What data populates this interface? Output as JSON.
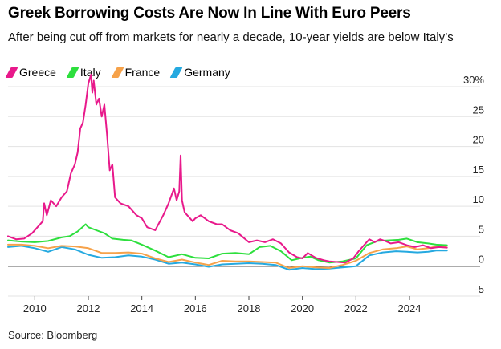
{
  "title": "Greek Borrowing Costs Are Now In Line With Euro Peers",
  "subtitle": "After being cut off from markets for nearly a decade, 10-year yields are below Italy’s",
  "source": "Source: Bloomberg",
  "chart_data": {
    "type": "line",
    "title": "Greek Borrowing Costs Are Now In Line With Euro Peers",
    "subtitle": "After being cut off from markets for nearly a decade, 10-year yields are below Italy’s",
    "xlabel": "",
    "ylabel": "",
    "y_unit": "%",
    "xlim": [
      2009.0,
      2025.8
    ],
    "ylim": [
      -5,
      30
    ],
    "x_ticks": [
      2010,
      2012,
      2014,
      2016,
      2018,
      2020,
      2022,
      2024
    ],
    "y_ticks": [
      -5,
      0,
      5,
      10,
      15,
      20,
      25,
      30
    ],
    "y_tick_labels": [
      "-5",
      "0",
      "5",
      "10",
      "15",
      "20",
      "25",
      "30%"
    ],
    "grid": "horizontal",
    "legend_position": "top-left",
    "series": [
      {
        "name": "Greece",
        "color": "#e8198b",
        "x": [
          2009.0,
          2009.3,
          2009.6,
          2009.9,
          2010.1,
          2010.3,
          2010.35,
          2010.45,
          2010.6,
          2010.8,
          2011.0,
          2011.2,
          2011.35,
          2011.5,
          2011.6,
          2011.7,
          2011.8,
          2011.9,
          2012.0,
          2012.1,
          2012.15,
          2012.2,
          2012.3,
          2012.4,
          2012.5,
          2012.6,
          2012.7,
          2012.8,
          2012.9,
          2013.0,
          2013.2,
          2013.5,
          2013.8,
          2014.0,
          2014.2,
          2014.5,
          2014.8,
          2015.0,
          2015.2,
          2015.3,
          2015.4,
          2015.45,
          2015.5,
          2015.55,
          2015.6,
          2015.7,
          2015.8,
          2015.9,
          2016.0,
          2016.2,
          2016.5,
          2016.8,
          2017.0,
          2017.3,
          2017.6,
          2018.0,
          2018.3,
          2018.6,
          2018.9,
          2019.2,
          2019.5,
          2019.8,
          2020.0,
          2020.2,
          2020.5,
          2020.8,
          2021.0,
          2021.3,
          2021.6,
          2021.9,
          2022.1,
          2022.3,
          2022.5,
          2022.7,
          2022.9,
          2023.1,
          2023.3,
          2023.6,
          2023.9,
          2024.2,
          2024.5,
          2024.8,
          2025.1,
          2025.4
        ],
        "y": [
          5.0,
          4.5,
          4.6,
          5.5,
          6.5,
          7.5,
          10.5,
          8.5,
          11.0,
          10.0,
          11.5,
          12.5,
          15.5,
          17.0,
          19.0,
          23.0,
          24.0,
          27.0,
          30.5,
          32.0,
          29.0,
          31.0,
          27.0,
          28.0,
          25.0,
          27.0,
          22.0,
          16.0,
          17.0,
          11.5,
          10.5,
          10.0,
          8.5,
          8.0,
          6.5,
          6.0,
          8.5,
          10.5,
          13.0,
          11.0,
          12.5,
          18.5,
          11.0,
          10.0,
          9.0,
          8.5,
          8.0,
          7.5,
          8.0,
          8.5,
          7.5,
          7.0,
          7.0,
          6.0,
          5.5,
          4.0,
          4.3,
          4.0,
          4.5,
          3.8,
          2.3,
          1.5,
          1.3,
          2.2,
          1.4,
          1.0,
          0.8,
          0.7,
          0.6,
          1.3,
          2.5,
          3.5,
          4.5,
          4.0,
          4.5,
          4.2,
          3.8,
          4.0,
          3.5,
          3.2,
          3.5,
          3.0,
          3.2,
          3.1
        ]
      },
      {
        "name": "Italy",
        "color": "#2ddf3d",
        "x": [
          2009.0,
          2009.5,
          2010.0,
          2010.5,
          2011.0,
          2011.3,
          2011.6,
          2011.9,
          2012.0,
          2012.3,
          2012.6,
          2012.9,
          2013.3,
          2013.6,
          2014.0,
          2014.5,
          2015.0,
          2015.5,
          2016.0,
          2016.5,
          2017.0,
          2017.5,
          2018.0,
          2018.4,
          2018.8,
          2019.2,
          2019.6,
          2020.0,
          2020.3,
          2020.6,
          2021.0,
          2021.5,
          2022.0,
          2022.4,
          2022.8,
          2023.2,
          2023.6,
          2023.9,
          2024.3,
          2024.7,
          2025.0,
          2025.4
        ],
        "y": [
          4.3,
          4.1,
          4.0,
          4.2,
          4.8,
          5.0,
          5.8,
          7.0,
          6.5,
          6.0,
          5.5,
          4.6,
          4.4,
          4.3,
          3.6,
          2.6,
          1.5,
          2.0,
          1.4,
          1.3,
          2.1,
          2.2,
          2.0,
          3.2,
          3.4,
          2.5,
          1.0,
          1.4,
          1.6,
          1.0,
          0.6,
          0.8,
          1.3,
          3.5,
          4.2,
          4.3,
          4.4,
          4.6,
          4.0,
          3.8,
          3.6,
          3.5
        ]
      },
      {
        "name": "France",
        "color": "#f6a24a",
        "x": [
          2009.0,
          2009.5,
          2010.0,
          2010.5,
          2011.0,
          2011.5,
          2012.0,
          2012.5,
          2013.0,
          2013.5,
          2014.0,
          2014.5,
          2015.0,
          2015.5,
          2016.0,
          2016.5,
          2017.0,
          2017.5,
          2018.0,
          2018.5,
          2019.0,
          2019.5,
          2020.0,
          2020.5,
          2021.0,
          2021.5,
          2022.0,
          2022.5,
          2023.0,
          2023.5,
          2023.9,
          2024.3,
          2024.7,
          2025.0,
          2025.4
        ],
        "y": [
          3.6,
          3.6,
          3.4,
          3.0,
          3.4,
          3.3,
          3.0,
          2.2,
          2.2,
          2.3,
          2.1,
          1.3,
          0.7,
          1.1,
          0.6,
          0.2,
          0.9,
          0.8,
          0.8,
          0.7,
          0.6,
          -0.3,
          0.0,
          -0.2,
          -0.3,
          0.2,
          0.9,
          2.2,
          2.8,
          3.0,
          3.3,
          2.8,
          3.0,
          3.3,
          3.4
        ]
      },
      {
        "name": "Germany",
        "color": "#25a9e0",
        "x": [
          2009.0,
          2009.5,
          2010.0,
          2010.5,
          2011.0,
          2011.5,
          2012.0,
          2012.5,
          2013.0,
          2013.5,
          2014.0,
          2014.5,
          2015.0,
          2015.5,
          2016.0,
          2016.5,
          2017.0,
          2017.5,
          2018.0,
          2018.5,
          2019.0,
          2019.5,
          2020.0,
          2020.5,
          2021.0,
          2021.5,
          2022.0,
          2022.5,
          2023.0,
          2023.5,
          2023.9,
          2024.3,
          2024.7,
          2025.0,
          2025.4
        ],
        "y": [
          3.2,
          3.4,
          3.0,
          2.4,
          3.2,
          2.8,
          1.9,
          1.4,
          1.5,
          1.8,
          1.6,
          1.1,
          0.4,
          0.6,
          0.3,
          -0.1,
          0.3,
          0.4,
          0.5,
          0.4,
          0.2,
          -0.6,
          -0.3,
          -0.5,
          -0.4,
          -0.2,
          0.0,
          1.8,
          2.3,
          2.5,
          2.4,
          2.3,
          2.4,
          2.6,
          2.6
        ]
      }
    ]
  }
}
